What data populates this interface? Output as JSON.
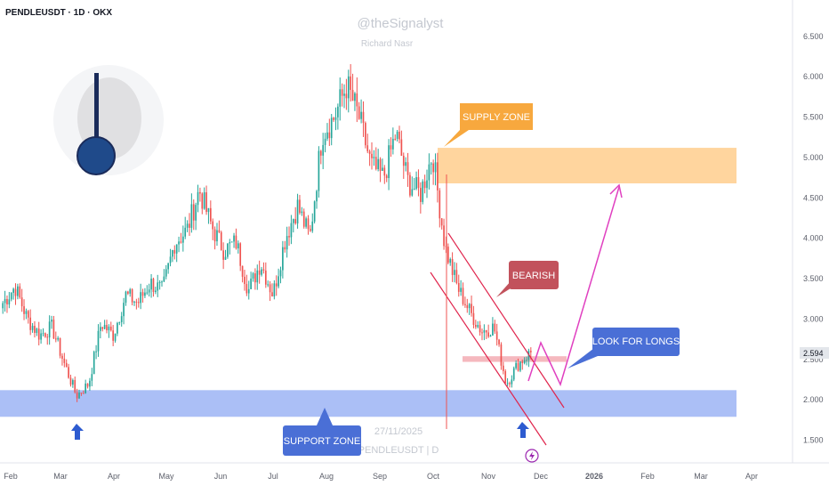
{
  "header": {
    "symbol": "PENDLEUSDT · 1D · OKX",
    "watermark": "@theSignalyst",
    "author": "Richard Nasr",
    "bottom_date": "27/11/2025",
    "bottom_symbol": "PENDLEUSDT | D"
  },
  "annotations": {
    "supply_zone": "SUPPLY ZONE",
    "bearish": "BEARISH",
    "look_for_longs": "LOOK FOR LONGS",
    "support_zone": "SUPPORT ZONE"
  },
  "colors": {
    "up": "#26a69a",
    "down": "#ef5350",
    "support_zone": "#8fa9f3",
    "supply_zone": "#ffc77d",
    "orange_label": "#f7a83e",
    "red_label": "#c2525c",
    "blue_label": "#4a6fd6",
    "magenta": "#e040c0",
    "channel": "#e0244c",
    "arrow_blue": "#2d5bd0",
    "last_price_tag": "#e3e6eb"
  },
  "icons": [
    "pendle-logo-icon",
    "up-arrow-icon",
    "lightning-icon"
  ],
  "chart_data": {
    "type": "candlestick",
    "title": "PENDLEUSDT · 1D · OKX",
    "x_ticks": [
      "Feb",
      "Mar",
      "Apr",
      "May",
      "Jun",
      "Jul",
      "Aug",
      "Sep",
      "Oct",
      "Nov",
      "Dec",
      "2026",
      "Feb",
      "Mar",
      "Apr"
    ],
    "y_ticks": [
      "6.500",
      "6.000",
      "5.500",
      "5.000",
      "4.500",
      "4.000",
      "3.500",
      "3.000",
      "2.500",
      "2.000",
      "1.500"
    ],
    "y_range": [
      1.22,
      6.95
    ],
    "last_price": "2.594",
    "grid": false,
    "price_path": [
      [
        "Feb",
        3.2
      ],
      [
        "Feb",
        3.4
      ],
      [
        "Feb",
        3.0
      ],
      [
        "Feb",
        2.8
      ],
      [
        "Mar",
        2.9
      ],
      [
        "Mar",
        2.45
      ],
      [
        "Mar",
        2.05
      ],
      [
        "Mar",
        2.2
      ],
      [
        "Apr",
        2.95
      ],
      [
        "Apr",
        2.8
      ],
      [
        "Apr",
        3.3
      ],
      [
        "Apr",
        3.2
      ],
      [
        "May",
        3.45
      ],
      [
        "May",
        3.35
      ],
      [
        "May",
        3.95
      ],
      [
        "May",
        4.1
      ],
      [
        "Jun",
        4.6
      ],
      [
        "Jun",
        4.15
      ],
      [
        "Jun",
        3.85
      ],
      [
        "Jun",
        3.95
      ],
      [
        "Jul",
        3.35
      ],
      [
        "Jul",
        3.7
      ],
      [
        "Jul",
        3.3
      ],
      [
        "Jul",
        4.0
      ],
      [
        "Jul",
        4.4
      ],
      [
        "Jul",
        4.0
      ],
      [
        "Aug",
        5.3
      ],
      [
        "Aug",
        5.5
      ],
      [
        "Aug",
        5.9
      ],
      [
        "Aug",
        5.5
      ],
      [
        "Sep",
        4.9
      ],
      [
        "Sep",
        4.75
      ],
      [
        "Sep",
        5.3
      ],
      [
        "Sep",
        4.7
      ],
      [
        "Oct",
        4.55
      ],
      [
        "Oct",
        5.05
      ],
      [
        "Oct",
        3.9
      ],
      [
        "Oct",
        3.4
      ],
      [
        "Nov",
        3.1
      ],
      [
        "Nov",
        2.85
      ],
      [
        "Nov",
        2.9
      ],
      [
        "Nov",
        2.2
      ],
      [
        "Nov",
        2.45
      ],
      [
        "Dec",
        2.59
      ]
    ],
    "zones": [
      {
        "label": "SUPPLY ZONE",
        "from": 4.68,
        "to": 5.12
      },
      {
        "label": "SUPPORT ZONE",
        "from": 1.79,
        "to": 2.12
      },
      {
        "label": "",
        "from": 2.47,
        "to": 2.54
      }
    ],
    "legend": "none"
  }
}
